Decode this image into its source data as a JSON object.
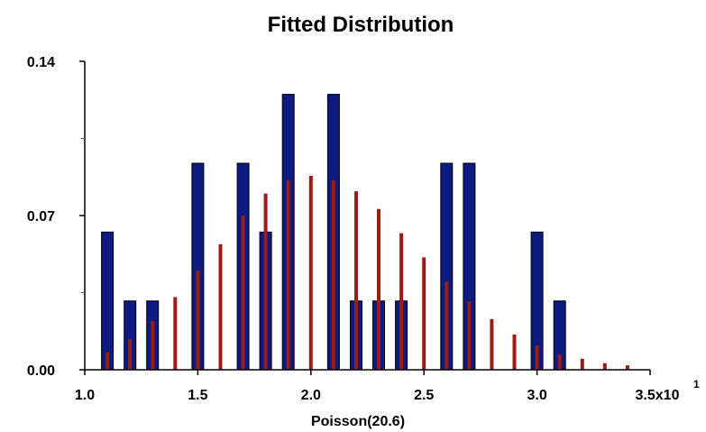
{
  "chart_data": {
    "type": "bar",
    "title": "Fitted Distribution",
    "xlabel": "Poisson(20.6)",
    "ylabel": "",
    "xlim": [
      10,
      35
    ],
    "ylim": [
      0,
      0.14
    ],
    "x_tick_labels": [
      "1.0",
      "1.5",
      "2.0",
      "2.5",
      "3.0",
      "3.5x10"
    ],
    "x_tick_values": [
      10,
      15,
      20,
      25,
      30,
      35
    ],
    "x_exponent_label": "1",
    "y_tick_labels": [
      "0.00",
      "0.07",
      "0.14"
    ],
    "y_tick_values": [
      0,
      0.07,
      0.14
    ],
    "colors": {
      "input": "#0c1a82",
      "input_edge": "#000000",
      "fitted": "#9b1c14"
    },
    "series": [
      {
        "type": "bar",
        "x": [
          11,
          12,
          13,
          15,
          17,
          18,
          19,
          21,
          22,
          23,
          24,
          26,
          27,
          30,
          31
        ],
        "values": [
          0.0625,
          0.03125,
          0.03125,
          0.09375,
          0.09375,
          0.0625,
          0.125,
          0.125,
          0.03125,
          0.03125,
          0.03125,
          0.09375,
          0.09375,
          0.0625,
          0.03125
        ]
      },
      {
        "type": "bar",
        "x": [
          11,
          12,
          13,
          14,
          15,
          16,
          17,
          18,
          19,
          20,
          21,
          22,
          23,
          24,
          25,
          26,
          27,
          28,
          29,
          30,
          31,
          32,
          33,
          34
        ],
        "values": [
          0.008,
          0.014,
          0.022,
          0.033,
          0.045,
          0.057,
          0.07,
          0.08,
          0.086,
          0.088,
          0.086,
          0.081,
          0.073,
          0.062,
          0.051,
          0.04,
          0.031,
          0.023,
          0.016,
          0.011,
          0.007,
          0.005,
          0.003,
          0.002
        ]
      }
    ]
  }
}
